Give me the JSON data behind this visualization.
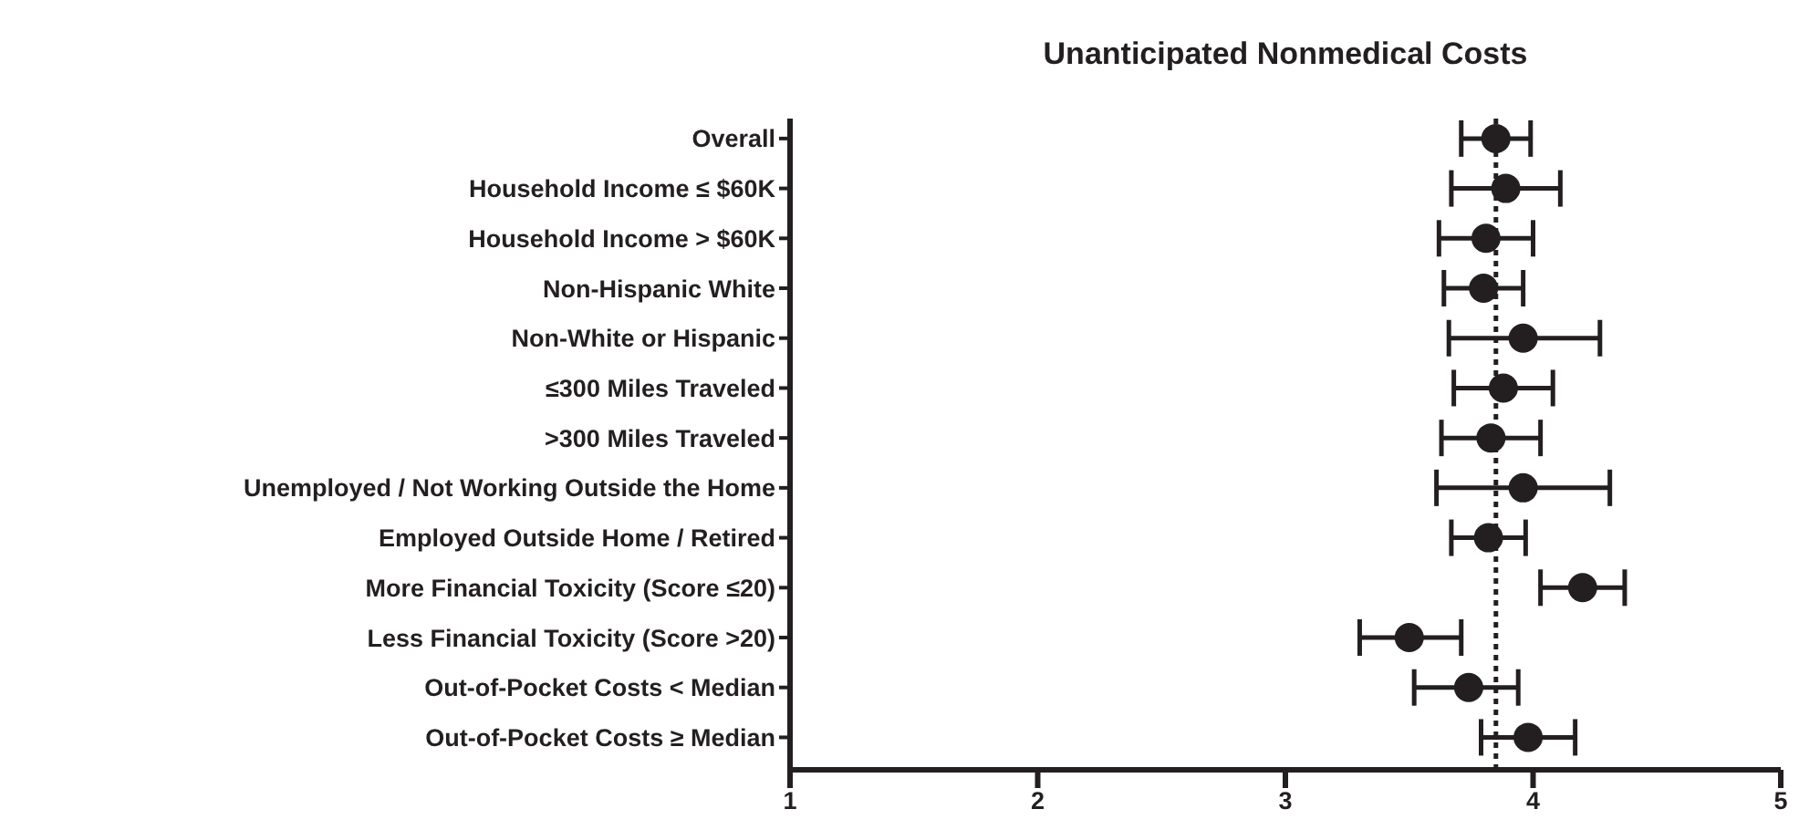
{
  "chart_data": {
    "type": "scatter",
    "orientation": "horizontal",
    "title": "Unanticipated Nonmedical Costs",
    "categories": [
      "Overall",
      "Household Income ≤ $60K",
      "Household Income > $60K",
      "Non-Hispanic White",
      "Non-White or Hispanic",
      "≤300 Miles Traveled",
      ">300 Miles Traveled",
      "Unemployed / Not Working Outside the Home",
      "Employed Outside Home / Retired",
      "More Financial Toxicity (Score ≤20)",
      "Less Financial Toxicity (Score >20)",
      "Out-of-Pocket Costs < Median",
      "Out-of-Pocket Costs ≥ Median"
    ],
    "values": [
      3.85,
      3.89,
      3.81,
      3.8,
      3.96,
      3.88,
      3.83,
      3.96,
      3.82,
      4.2,
      3.5,
      3.74,
      3.98
    ],
    "errors": [
      [
        3.71,
        3.99
      ],
      [
        3.67,
        4.11
      ],
      [
        3.62,
        4.0
      ],
      [
        3.64,
        3.96
      ],
      [
        3.66,
        4.27
      ],
      [
        3.68,
        4.08
      ],
      [
        3.63,
        4.03
      ],
      [
        3.61,
        4.31
      ],
      [
        3.67,
        3.97
      ],
      [
        4.03,
        4.37
      ],
      [
        3.3,
        3.71
      ],
      [
        3.52,
        3.94
      ],
      [
        3.79,
        4.17
      ]
    ],
    "color": "#231f20",
    "marker": "circle",
    "xlim": [
      1,
      5
    ],
    "xticks": [
      1,
      2,
      3,
      4,
      5
    ],
    "ref_lines": [
      {
        "axis": "x",
        "value": 3.85,
        "line_style": "dotted",
        "color": "#231f20"
      }
    ],
    "grid": false,
    "legend": false
  }
}
